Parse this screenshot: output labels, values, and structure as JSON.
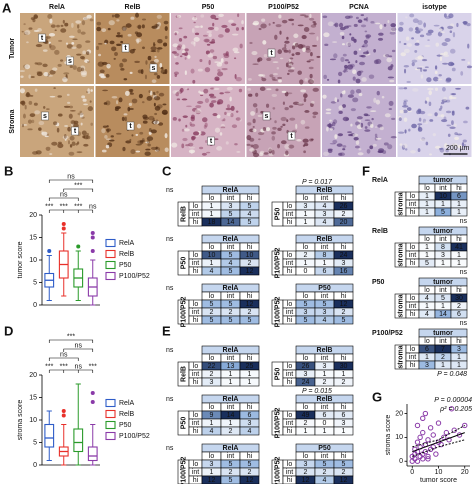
{
  "panel_labels": [
    "A",
    "B",
    "C",
    "D",
    "E",
    "F",
    "G"
  ],
  "protein_colors": {
    "RelA": "#2e5cc8",
    "RelB": "#d9281e",
    "P50": "#2a9a2a",
    "P100/P52": "#8a3aa8",
    "PCNA": "#d9281e",
    "isotype": "#000000"
  },
  "panel_a": {
    "columns": [
      "RelA",
      "RelB",
      "P50",
      "P100/P52",
      "PCNA",
      "isotype"
    ],
    "rows": [
      "Tumor",
      "Stroma"
    ],
    "markers": [
      "t",
      "s"
    ],
    "scale_bar": "200 µm"
  },
  "chart_data": [
    {
      "type": "box",
      "ylabel": "tumor score",
      "categories": [
        "RelA",
        "RelB",
        "P50",
        "P100/P52"
      ],
      "colors": [
        "#2e5cc8",
        "#e8302a",
        "#2a9a2a",
        "#8a3aa8"
      ],
      "ylim": [
        0,
        20
      ],
      "yticks": [
        0,
        5,
        10,
        15,
        20
      ],
      "boxes": [
        {
          "low": 1,
          "q1": 4,
          "median": 5.5,
          "q3": 7,
          "high": 11,
          "outliers": [
            12
          ]
        },
        {
          "low": 2,
          "q1": 6,
          "median": 9,
          "q3": 12,
          "high": 16,
          "outliers": [
            18,
            17
          ]
        },
        {
          "low": 1,
          "q1": 4,
          "median": 6,
          "q3": 8,
          "high": 12,
          "outliers": [
            13
          ]
        },
        {
          "low": 0,
          "q1": 2,
          "median": 4,
          "q3": 6,
          "high": 10,
          "outliers": [
            12,
            15,
            16
          ]
        }
      ],
      "significance_top": [
        "ns",
        "***",
        "ns"
      ],
      "significance_row": [
        "***",
        "***",
        "***",
        "ns"
      ]
    },
    {
      "type": "box",
      "ylabel": "stroma score",
      "categories": [
        "RelA",
        "RelB",
        "P50",
        "P100/P52"
      ],
      "colors": [
        "#2e5cc8",
        "#e8302a",
        "#2a9a2a",
        "#8a3aa8"
      ],
      "ylim": [
        0,
        20
      ],
      "yticks": [
        0,
        5,
        10,
        15,
        20
      ],
      "boxes": [
        {
          "low": 1,
          "q1": 4,
          "median": 6,
          "q3": 9,
          "high": 12,
          "outliers": []
        },
        {
          "low": 0,
          "q1": 2,
          "median": 3,
          "q3": 4,
          "high": 9,
          "outliers": [
            11,
            12
          ]
        },
        {
          "low": 0,
          "q1": 3,
          "median": 5,
          "q3": 8,
          "high": 18,
          "outliers": []
        },
        {
          "low": 0,
          "q1": 1,
          "median": 2,
          "q3": 4,
          "high": 9,
          "outliers": [
            14,
            16
          ]
        }
      ],
      "significance_top": [
        "***",
        "ns",
        "ns"
      ],
      "significance_row": [
        "***",
        "***",
        "ns",
        "***"
      ]
    },
    {
      "type": "scatter",
      "xlabel": "tumor score",
      "ylabel": "stroma score",
      "color": "#8a3aa8",
      "xlim": [
        -2,
        22
      ],
      "ylim": [
        -2,
        24
      ],
      "xticks": [
        0,
        10,
        20
      ],
      "yticks": [
        0,
        10,
        20
      ],
      "x": [
        0,
        0,
        1,
        1,
        1,
        2,
        2,
        2,
        3,
        3,
        3,
        4,
        4,
        4,
        5,
        5,
        5,
        6,
        6,
        7,
        7,
        8,
        8,
        9,
        10,
        10,
        11,
        12,
        13,
        14,
        15,
        16,
        18,
        20,
        4,
        2,
        6
      ],
      "y": [
        0,
        2,
        1,
        3,
        5,
        0,
        4,
        8,
        2,
        6,
        10,
        1,
        3,
        12,
        4,
        7,
        20,
        2,
        9,
        5,
        14,
        6,
        11,
        3,
        8,
        16,
        7,
        10,
        12,
        9,
        22,
        13,
        11,
        15,
        18,
        15,
        1
      ],
      "fit": {
        "x": [
          0,
          20
        ],
        "y": [
          4,
          12
        ]
      },
      "ci": [
        {
          "x": [
            0,
            10,
            20
          ],
          "y": [
            2,
            6,
            9
          ]
        },
        {
          "x": [
            0,
            10,
            20
          ],
          "y": [
            6,
            9,
            15
          ]
        }
      ],
      "annotations": [
        "P = 0.00004",
        "ρ² = 0.205"
      ]
    }
  ],
  "tables": {
    "C": [
      {
        "row_label": "RelB",
        "col_label": "RelA",
        "cols": [
          "lo",
          "int",
          "hi"
        ],
        "rows": [
          "lo",
          "int",
          "hi"
        ],
        "cells": [
          [
            1,
            3,
            5
          ],
          [
            1,
            5,
            4
          ],
          [
            18,
            14,
            5
          ]
        ],
        "stat": "ns"
      },
      {
        "row_label": "P50",
        "col_label": "RelB",
        "cols": [
          "lo",
          "int",
          "hi"
        ],
        "rows": [
          "lo",
          "int",
          "hi"
        ],
        "cells": [
          [
            3,
            4,
            26
          ],
          [
            1,
            3,
            2
          ],
          [
            1,
            4,
            20
          ]
        ],
        "stat": "P = 0.017"
      },
      {
        "row_label": "P50",
        "col_label": "RelA",
        "cols": [
          "lo",
          "int",
          "hi"
        ],
        "rows": [
          "lo",
          "int",
          "hi"
        ],
        "cells": [
          [
            10,
            5,
            10
          ],
          [
            1,
            4,
            2
          ],
          [
            4,
            5,
            12
          ]
        ],
        "stat": "ns"
      },
      {
        "row_label": "P100/P52",
        "col_label": "RelB",
        "cols": [
          "lo",
          "int",
          "hi"
        ],
        "rows": [
          "lo",
          "int",
          "hi"
        ],
        "cells": [
          [
            2,
            8,
            24
          ],
          [
            1,
            1,
            3
          ],
          [
            0,
            6,
            16
          ]
        ]
      },
      {
        "row_label": "P100/P52",
        "col_label": "RelA",
        "cols": [
          "lo",
          "int",
          "hi"
        ],
        "rows": [
          "lo",
          "int",
          "hi"
        ],
        "cells": [
          [
            5,
            5,
            12
          ],
          [
            2,
            2,
            2
          ],
          [
            5,
            5,
            5
          ]
        ],
        "stat": "ns"
      },
      {
        "row_label": "P100/P52",
        "col_label": "P50",
        "cols": [
          "lo",
          "int",
          "hi"
        ],
        "rows": [
          "lo",
          "int",
          "hi"
        ],
        "cells": [
          [
            5,
            5,
            12
          ],
          [
            3,
            3,
            2
          ],
          [
            5,
            4,
            5
          ]
        ]
      }
    ],
    "E": [
      {
        "row_label": "RelB",
        "col_label": "RelA",
        "cols": [
          "lo",
          "int",
          "hi"
        ],
        "rows": [
          "lo",
          "int",
          "hi"
        ],
        "cells": [
          [
            22,
            13,
            25
          ],
          [
            2,
            1,
            1
          ],
          [
            3,
            1,
            1
          ]
        ],
        "stat": "ns"
      },
      {
        "row_label": "P50",
        "col_label": "RelB",
        "cols": [
          "lo",
          "int",
          "hi"
        ],
        "rows": [
          "lo",
          "int",
          "hi"
        ],
        "cells": [
          [
            26,
            3,
            30
          ],
          [
            3,
            1,
            1
          ],
          [
            24,
            2,
            2
          ]
        ]
      },
      {
        "row_label": "P50",
        "col_label": "RelA",
        "cols": [
          "lo",
          "int",
          "hi"
        ],
        "rows": [
          "lo",
          "int",
          "hi"
        ],
        "cells": [
          [
            9,
            14,
            6
          ],
          [
            1,
            1,
            3
          ],
          [
            4,
            2,
            4
          ]
        ],
        "stat": "ns"
      },
      {
        "row_label": "P100/P52",
        "col_label": "RelB",
        "cols": [
          "lo",
          "int",
          "hi"
        ],
        "rows": [
          "lo",
          "int",
          "hi"
        ],
        "cells": [
          [
            49,
            6,
            6
          ],
          [
            2,
            0,
            3
          ],
          [
            1,
            1,
            1
          ]
        ],
        "stat": "P = 0.015"
      },
      {
        "row_label": "P100/P52",
        "col_label": "RelA",
        "cols": [
          "lo",
          "int",
          "hi"
        ],
        "rows": [
          "lo",
          "int",
          "hi"
        ],
        "cells": [
          [
            3,
            5,
            5
          ],
          [
            1,
            2,
            2
          ],
          [
            12,
            5,
            12
          ]
        ],
        "stat": "ns"
      },
      {
        "row_label": "P100/P52",
        "col_label": "P50",
        "cols": [
          "lo",
          "int",
          "hi"
        ],
        "rows": [
          "lo",
          "int",
          "hi"
        ],
        "cells": [
          [
            3,
            5,
            5
          ],
          [
            2,
            2,
            2
          ],
          [
            12,
            4,
            12
          ]
        ]
      }
    ],
    "F": [
      {
        "title": "RelA",
        "row_label": "stroma",
        "col_label": "tumor",
        "cols": [
          "lo",
          "int",
          "hi"
        ],
        "rows": [
          "lo",
          "int",
          "hi"
        ],
        "cells": [
          [
            1,
            10,
            6
          ],
          [
            1,
            1,
            1
          ],
          [
            1,
            5,
            1
          ]
        ],
        "stat": "ns"
      },
      {
        "title": "RelB",
        "row_label": "stroma",
        "col_label": "tumor",
        "cols": [
          "lo",
          "int",
          "hi"
        ],
        "rows": [
          "lo",
          "int",
          "hi"
        ],
        "cells": [
          [
            1,
            8,
            41
          ],
          [
            1,
            3,
            1
          ],
          [
            5,
            1,
            1
          ]
        ],
        "stat": "ns"
      },
      {
        "title": "P50",
        "row_label": "stroma",
        "col_label": "tumor",
        "cols": [
          "lo",
          "int",
          "hi"
        ],
        "rows": [
          "lo",
          "int",
          "hi"
        ],
        "cells": [
          [
            4,
            5,
            30
          ],
          [
            1,
            1,
            2
          ],
          [
            4,
            14,
            6
          ]
        ],
        "stat": "ns"
      },
      {
        "title": "P100/P52",
        "row_label": "stroma",
        "col_label": "tumor",
        "cols": [
          "lo",
          "int",
          "hi"
        ],
        "rows": [
          "lo",
          "int",
          "hi"
        ],
        "cells": [
          [
            6,
            7,
            3
          ],
          [
            1,
            2,
            1
          ],
          [
            3,
            1,
            1
          ]
        ],
        "stat": "P = 0.048"
      }
    ]
  }
}
